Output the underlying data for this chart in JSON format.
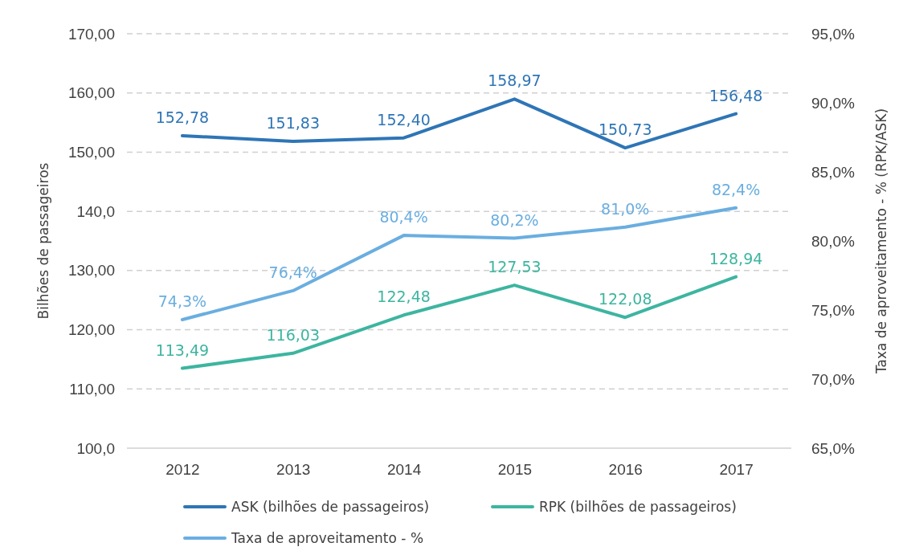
{
  "chart_data": {
    "type": "line",
    "ylabel": "Bilhões de passageiros",
    "y2label": "Taxa de aproveitamento - % (RPK/ASK)",
    "categories": [
      "2012",
      "2013",
      "2014",
      "2015",
      "2016",
      "2017"
    ],
    "series": [
      {
        "name": "ASK (bilhões de passageiros)",
        "color": "#2e75b6",
        "values": [
          152.78,
          151.83,
          152.4,
          158.97,
          150.73,
          156.48
        ],
        "value_labels": [
          "152,78",
          "151,83",
          "152,40",
          "158,97",
          "150,73",
          "156,48"
        ]
      },
      {
        "name": "RPK (bilhões de passageiros)",
        "color": "#3db5a0",
        "values": [
          113.49,
          116.03,
          122.48,
          127.53,
          122.08,
          128.94
        ],
        "value_labels": [
          "113,49",
          "116,03",
          "122,48",
          "127,53",
          "122,08",
          "128,94"
        ]
      },
      {
        "name": "Taxa de aproveitamento - %",
        "color": "#6aaee0",
        "axis": "y2",
        "values": [
          74.3,
          76.4,
          80.4,
          80.2,
          81.0,
          82.4
        ],
        "value_labels": [
          "74,3%",
          "76,4%",
          "80,4%",
          "80,2%",
          "81,0%",
          "82,4%"
        ]
      }
    ],
    "ylim": [
      100,
      170
    ],
    "yticks": [
      {
        "value": 100,
        "label": "100,0"
      },
      {
        "value": 110,
        "label": "110,00"
      },
      {
        "value": 120,
        "label": "120,00"
      },
      {
        "value": 130,
        "label": "130,00"
      },
      {
        "value": 140,
        "label": "140,0"
      },
      {
        "value": 150,
        "label": "150,00"
      },
      {
        "value": 160,
        "label": "160,00"
      },
      {
        "value": 170,
        "label": "170,00"
      }
    ],
    "y2lim": [
      65,
      95
    ],
    "y2ticks": [
      {
        "value": 65,
        "label": "65,0%"
      },
      {
        "value": 70,
        "label": "70,0%"
      },
      {
        "value": 75,
        "label": "75,0%"
      },
      {
        "value": 80,
        "label": "80,0%"
      },
      {
        "value": 85,
        "label": "85,0%"
      },
      {
        "value": 90,
        "label": "90,0%"
      },
      {
        "value": 95,
        "label": "95,0%"
      }
    ],
    "grid": "y",
    "legend": "bottom",
    "marker": "none",
    "line_style": "solid"
  }
}
